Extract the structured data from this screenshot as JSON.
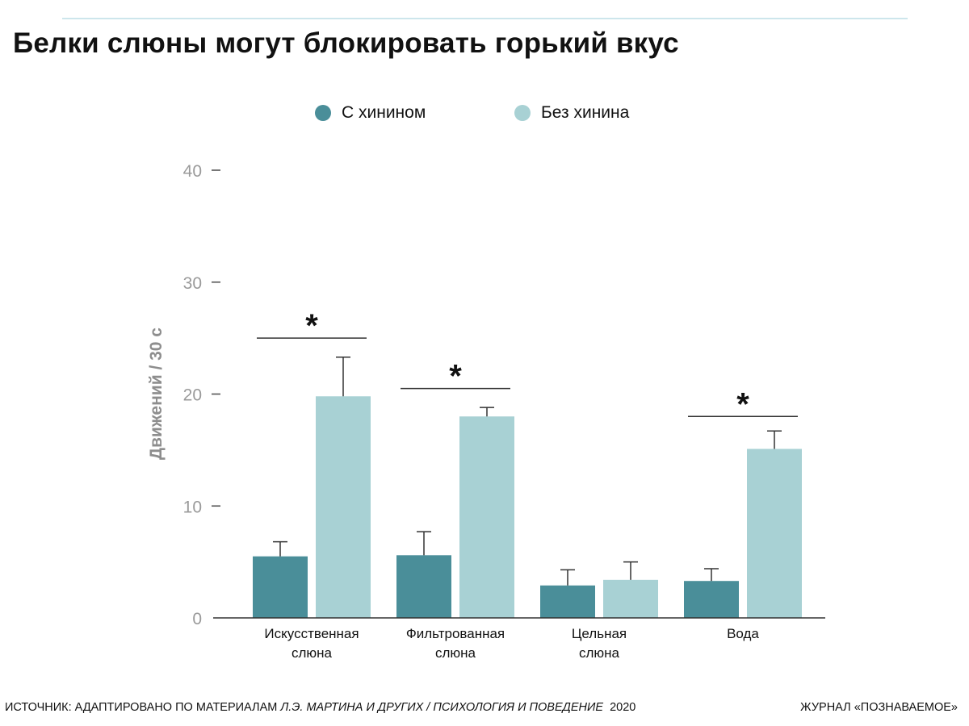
{
  "header": {
    "title": "Белки слюны могут блокировать горький вкус"
  },
  "colors": {
    "with_quinine": "#4a8e99",
    "without_quinine": "#a8d1d4",
    "rule": "#cde6ec"
  },
  "chart_data": {
    "type": "bar",
    "ylabel": "Движений / 30 с",
    "xlabel": "",
    "ylim": [
      0,
      40
    ],
    "yticks": [
      0,
      10,
      20,
      30,
      40
    ],
    "grid": false,
    "legend_position": "top",
    "categories": [
      [
        "Искусственная",
        "слюна"
      ],
      [
        "Фильтрованная",
        "слюна"
      ],
      [
        "Цельная",
        "слюна"
      ],
      [
        "Вода"
      ]
    ],
    "series": [
      {
        "name": "С хинином",
        "color": "#4a8e99",
        "values": [
          5.5,
          5.6,
          2.9,
          3.3
        ],
        "errors": [
          1.3,
          2.1,
          1.4,
          1.1
        ]
      },
      {
        "name": "Без хинина",
        "color": "#a8d1d4",
        "values": [
          19.8,
          18.0,
          3.4,
          15.1
        ],
        "errors": [
          3.5,
          0.8,
          1.6,
          1.6
        ]
      }
    ],
    "annotations": [
      {
        "category_index": 0,
        "text": "*",
        "y": 25
      },
      {
        "category_index": 1,
        "text": "*",
        "y": 20.5
      },
      {
        "category_index": 3,
        "text": "*",
        "y": 18
      }
    ]
  },
  "footer": {
    "source_prefix": "ИСТОЧНИК: АДАПТИРОВАНО ПО МАТЕРИАЛАМ ",
    "source_authors": "Л.Э. МАРТИНА И ДРУГИХ / ПСИХОЛОГИЯ И ПОВЕДЕНИЕ",
    "source_year": "2020",
    "journal": "ЖУРНАЛ «ПОЗНАВАЕМОЕ»"
  }
}
